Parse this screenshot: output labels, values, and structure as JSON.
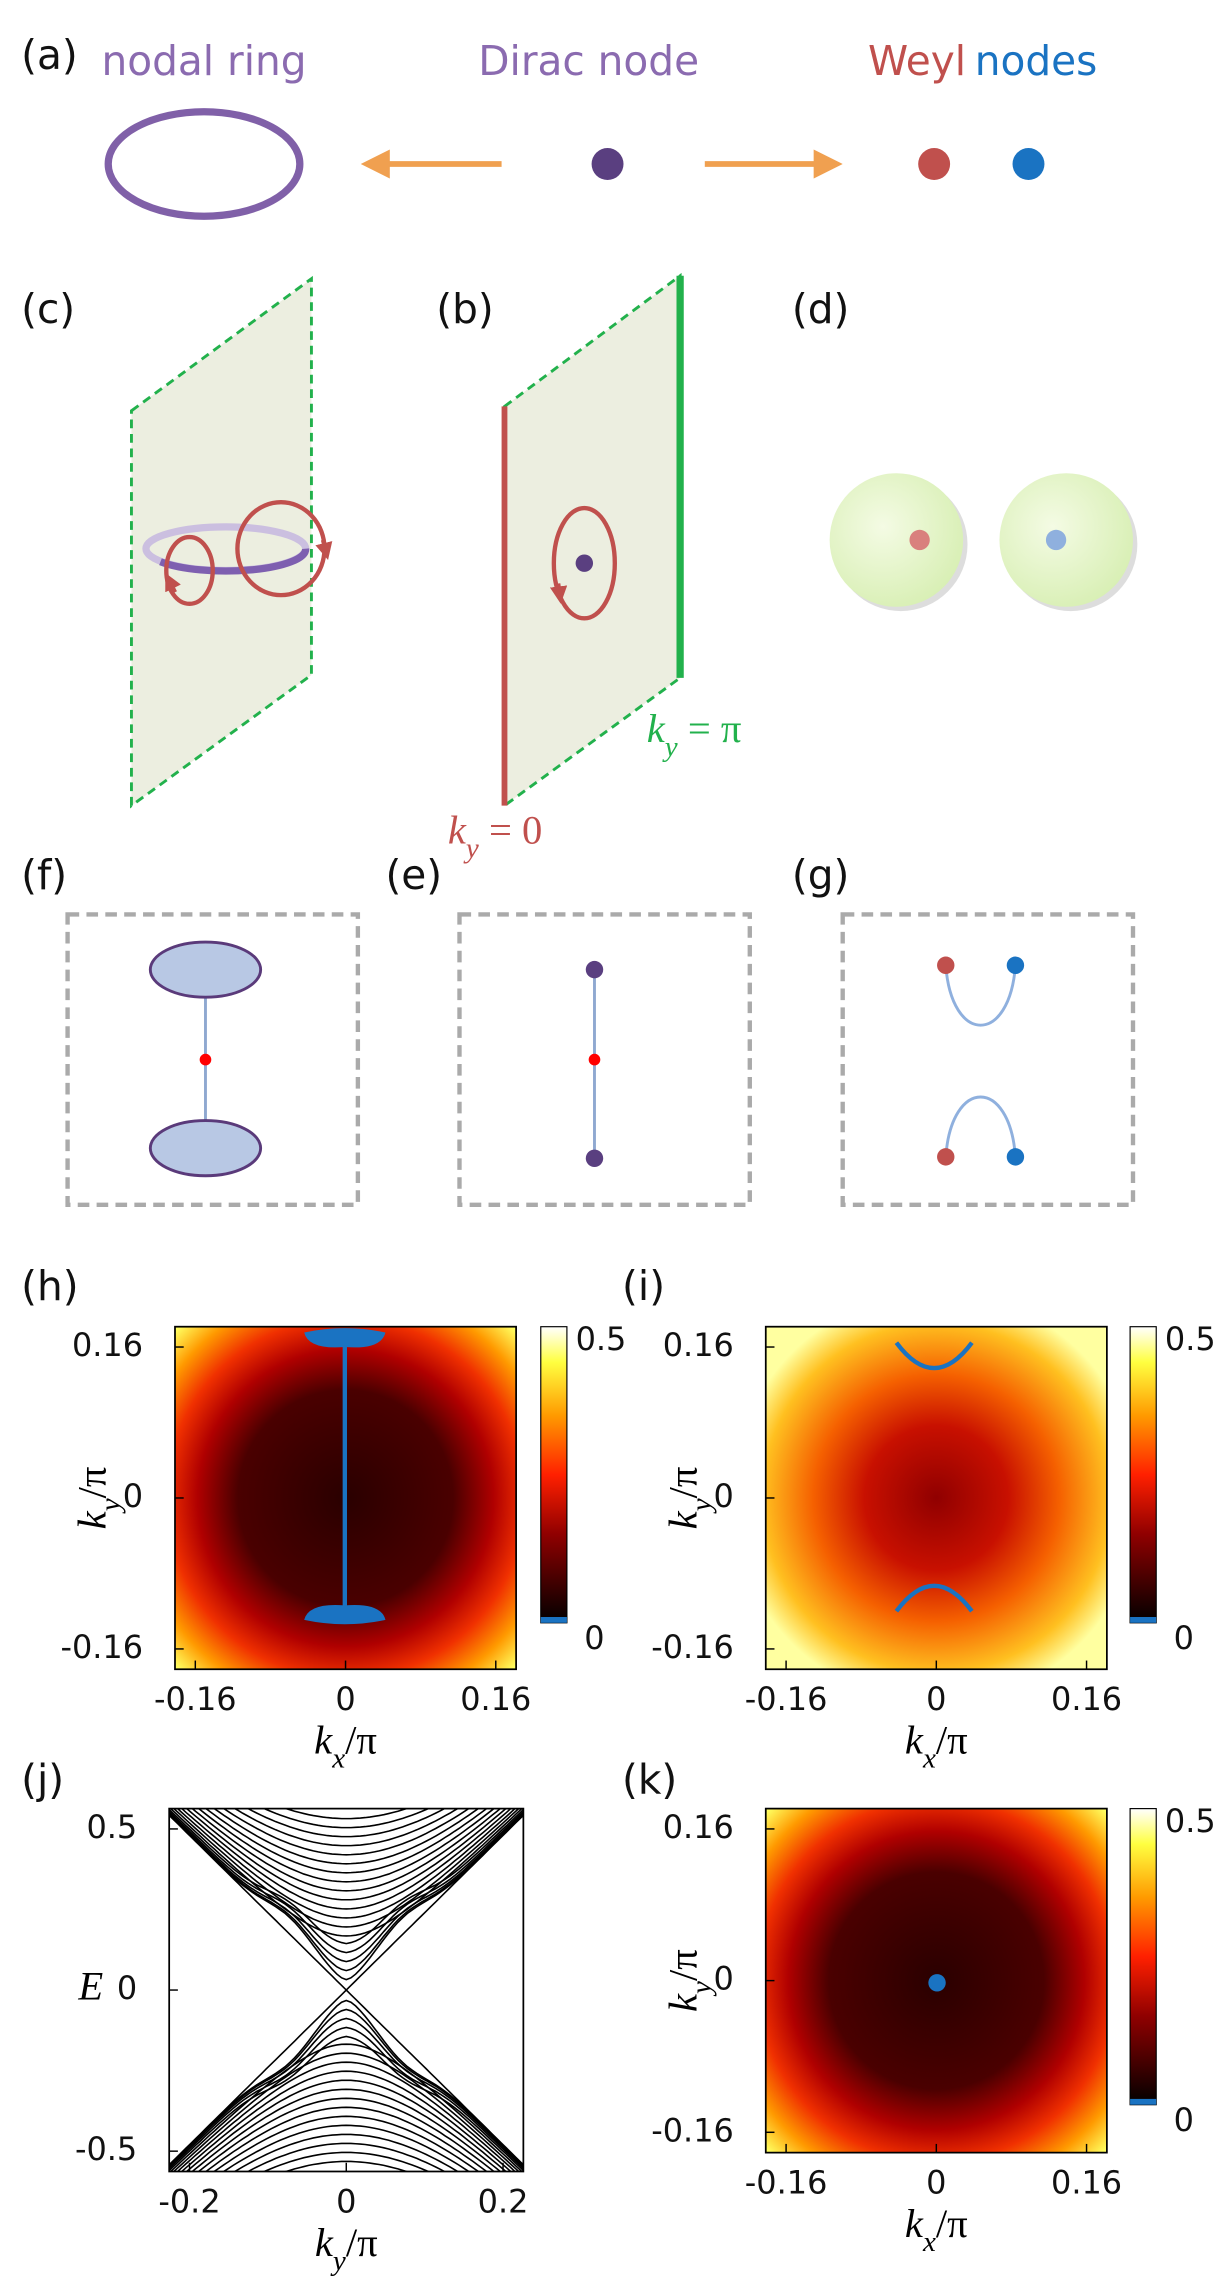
{
  "panels": {
    "a": {
      "label": "(a)",
      "nodal_ring": "nodal ring",
      "dirac_node": "Dirac node",
      "weyl": "Weyl",
      "nodes": "nodes"
    },
    "c": {
      "label": "(c)"
    },
    "b": {
      "label": "(b)",
      "ky_pi": [
        "k",
        "y",
        " = π"
      ],
      "ky_0": [
        "k",
        "y",
        " = 0"
      ]
    },
    "d": {
      "label": "(d)"
    },
    "f": {
      "label": "(f)"
    },
    "e": {
      "label": "(e)"
    },
    "g": {
      "label": "(g)"
    },
    "h": {
      "label": "(h)",
      "xticks": [
        -0.16,
        0,
        0.16
      ],
      "yticks": [
        -0.16,
        0,
        0.16
      ],
      "xlabel": [
        "k",
        "x",
        "/π"
      ],
      "ylabel": [
        "k",
        "y",
        "/π"
      ],
      "colorbar": [
        0,
        0.5
      ]
    },
    "i": {
      "label": "(i)",
      "xticks": [
        -0.16,
        0,
        0.16
      ],
      "yticks": [
        -0.16,
        0,
        0.16
      ],
      "xlabel": [
        "k",
        "x",
        "/π"
      ],
      "ylabel": [
        "k",
        "y",
        "/π"
      ],
      "colorbar": [
        0,
        0.5
      ]
    },
    "j": {
      "label": "(j)",
      "xticks": [
        -0.2,
        0,
        0.2
      ],
      "yticks": [
        -0.5,
        0,
        0.5
      ],
      "xlabel": [
        "k",
        "y",
        "/π"
      ],
      "ylabel": "E"
    },
    "k": {
      "label": "(k)",
      "xticks": [
        -0.16,
        0,
        0.16
      ],
      "yticks": [
        -0.16,
        0,
        0.16
      ],
      "xlabel": [
        "k",
        "x",
        "/π"
      ],
      "ylabel": [
        "k",
        "y",
        "/π"
      ],
      "colorbar": [
        0,
        0.5
      ]
    }
  }
}
